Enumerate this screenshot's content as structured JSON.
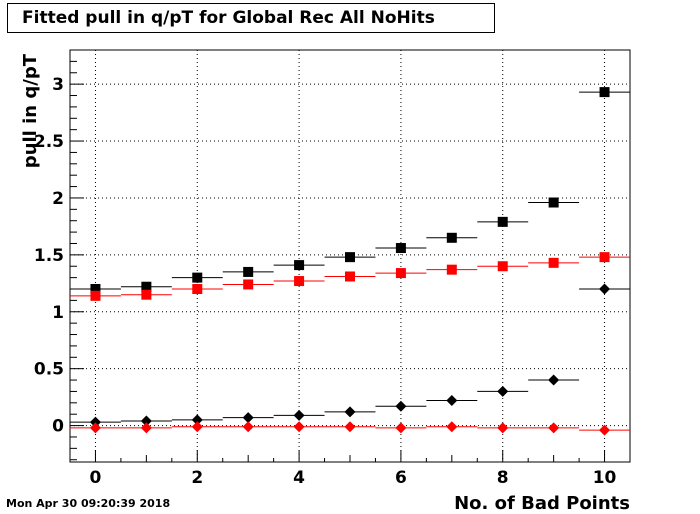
{
  "title": "Fitted pull in q/pT for Global Rec All NoHits",
  "timestamp": "Mon Apr 30 09:20:39 2018",
  "chart_data": {
    "type": "scatter",
    "title": "Fitted pull in q/pT for Global Rec All NoHits",
    "xlabel": "No. of Bad Points",
    "ylabel": "pull in q/pT",
    "xlim": [
      -0.5,
      10.5
    ],
    "ylim": [
      -0.32,
      3.3
    ],
    "xticks": [
      0,
      2,
      4,
      6,
      8,
      10
    ],
    "yticks": [
      0,
      0.5,
      1,
      1.5,
      2,
      2.5,
      3
    ],
    "ytick_labels": [
      "0",
      "0.5",
      "1",
      "1.5",
      "2",
      "2.5",
      "3"
    ],
    "grid": true,
    "x": [
      0,
      1,
      2,
      3,
      4,
      5,
      6,
      7,
      8,
      9,
      10
    ],
    "series": [
      {
        "marker": "square",
        "color": "#000000",
        "values": [
          1.2,
          1.22,
          1.3,
          1.35,
          1.41,
          1.48,
          1.56,
          1.65,
          1.79,
          1.96,
          2.93
        ]
      },
      {
        "marker": "square",
        "color": "#ff0000",
        "values": [
          1.14,
          1.15,
          1.2,
          1.24,
          1.27,
          1.31,
          1.34,
          1.37,
          1.4,
          1.43,
          1.48
        ]
      },
      {
        "marker": "diamond",
        "color": "#000000",
        "values": [
          0.03,
          0.04,
          0.05,
          0.07,
          0.09,
          0.12,
          0.17,
          0.22,
          0.3,
          0.4,
          1.2
        ]
      },
      {
        "marker": "diamond",
        "color": "#ff0000",
        "values": [
          -0.02,
          -0.02,
          -0.01,
          -0.01,
          -0.01,
          -0.01,
          -0.02,
          -0.01,
          -0.02,
          -0.02,
          -0.04
        ]
      }
    ]
  }
}
